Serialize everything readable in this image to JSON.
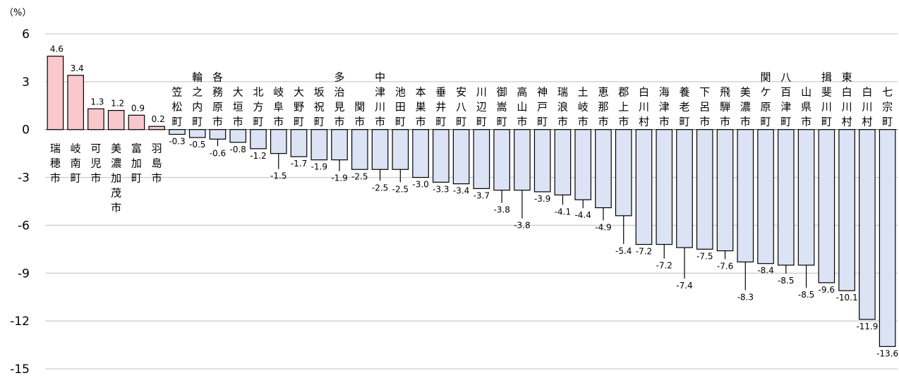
{
  "chart_data": {
    "type": "bar",
    "title": "",
    "xlabel": "",
    "ylabel": "",
    "unit_label": "（%）",
    "ylim": [
      -15,
      6
    ],
    "yticks": [
      6,
      3,
      0,
      -3,
      -6,
      -9,
      -12,
      -15
    ],
    "grid": true,
    "legend": "none",
    "colors": {
      "positive": "#f9c8cc",
      "negative": "#dbe3f5",
      "border": "#000000",
      "grid": "#bfbfbf"
    },
    "categories": [
      "瑞穂市",
      "岐南町",
      "可児市",
      "美濃加茂市",
      "富加町",
      "羽島市",
      "笠松町",
      "輪之内町",
      "各務原市",
      "大垣市",
      "北方町",
      "岐阜市",
      "大野町",
      "坂祝町",
      "多治見市",
      "関市",
      "中津川市",
      "池田町",
      "本巣市",
      "垂井町",
      "安八町",
      "川辺町",
      "御嵩町",
      "高山市",
      "神戸町",
      "瑞浪市",
      "土岐市",
      "恵那市",
      "郡上市",
      "白川村",
      "海津市",
      "養老町",
      "下呂市",
      "飛騨市",
      "美濃市",
      "関ケ原町",
      "八百津町",
      "山県市",
      "揖斐川町",
      "東白川村",
      "白川村",
      "七宗町"
    ],
    "values": [
      4.6,
      3.4,
      1.3,
      1.2,
      0.9,
      0.2,
      -0.3,
      -0.5,
      -0.6,
      -0.8,
      -1.2,
      -1.5,
      -1.7,
      -1.9,
      -1.9,
      -2.5,
      -2.5,
      -2.5,
      -3.0,
      -3.3,
      -3.4,
      -3.7,
      -3.8,
      -3.8,
      -3.9,
      -4.1,
      -4.4,
      -4.9,
      -5.4,
      -7.2,
      -7.2,
      -7.4,
      -7.5,
      -7.6,
      -8.3,
      -8.4,
      -8.5,
      -8.5,
      -9.6,
      -10.1,
      -11.9,
      -13.6
    ],
    "value_labels": [
      "4.6",
      "3.4",
      "1.3",
      "1.2",
      "0.9",
      "0.2",
      "-0.3",
      "-0.5",
      "-0.6",
      "-0.8",
      "-1.2",
      "-1.5",
      "-1.7",
      "-1.9",
      "-1.9",
      "-2.5",
      "-2.5",
      "-2.5",
      "-3.0",
      "-3.3",
      "-3.4",
      "-3.7",
      "-3.8",
      "-3.8",
      "-3.9",
      "-4.1",
      "-4.4",
      "-4.9",
      "-5.4",
      "-7.2",
      "-7.2",
      "-7.4",
      "-7.5",
      "-7.6",
      "-8.3",
      "-8.4",
      "-8.5",
      "-8.5",
      "-9.6",
      "-10.1",
      "-11.9",
      "-13.6"
    ]
  }
}
